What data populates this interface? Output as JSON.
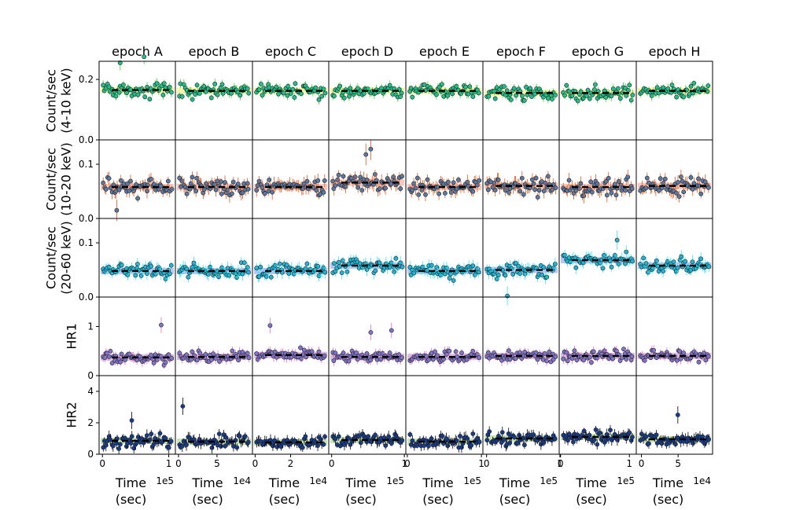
{
  "figure": {
    "columns": [
      {
        "title": "epoch A",
        "xlabel_line1": "Time",
        "xlabel_line2": "(sec)",
        "offset_label": "1e5",
        "x_ticks": [
          {
            "v": 0,
            "l": "0"
          },
          {
            "v": 1,
            "l": "1"
          }
        ],
        "xlim": [
          -0.05,
          1.1
        ]
      },
      {
        "title": "epoch B",
        "xlabel_line1": "Time",
        "xlabel_line2": "(sec)",
        "offset_label": "1e4",
        "x_ticks": [
          {
            "v": 0,
            "l": "0"
          },
          {
            "v": 5,
            "l": "5"
          }
        ],
        "xlim": [
          -0.4,
          9.6
        ]
      },
      {
        "title": "epoch C",
        "xlabel_line1": "Time",
        "xlabel_line2": "(sec)",
        "offset_label": "1e4",
        "x_ticks": [
          {
            "v": 0,
            "l": "0"
          },
          {
            "v": 2,
            "l": "2"
          }
        ],
        "xlim": [
          -0.15,
          4.15
        ]
      },
      {
        "title": "epoch D",
        "xlabel_line1": "Time",
        "xlabel_line2": "(sec)",
        "offset_label": "1e5",
        "x_ticks": [
          {
            "v": 0,
            "l": "0"
          },
          {
            "v": 1,
            "l": "1"
          }
        ],
        "xlim": [
          -0.04,
          1.02
        ]
      },
      {
        "title": "epoch E",
        "xlabel_line1": "Time",
        "xlabel_line2": "(sec)",
        "offset_label": "1e5",
        "x_ticks": [
          {
            "v": 0,
            "l": "0"
          },
          {
            "v": 1,
            "l": "1"
          }
        ],
        "xlim": [
          -0.02,
          1.02
        ]
      },
      {
        "title": "epoch F",
        "xlabel_line1": "Time",
        "xlabel_line2": "(sec)",
        "offset_label": "1e5",
        "x_ticks": [
          {
            "v": 0,
            "l": "0"
          },
          {
            "v": 1,
            "l": "1"
          }
        ],
        "xlim": [
          -0.05,
          0.99
        ]
      },
      {
        "title": "epoch G",
        "xlabel_line1": "Time",
        "xlabel_line2": "(sec)",
        "offset_label": "1e5",
        "x_ticks": [
          {
            "v": 0,
            "l": "0"
          },
          {
            "v": 1,
            "l": "1"
          }
        ],
        "xlim": [
          -0.02,
          1.1
        ]
      },
      {
        "title": "epoch H",
        "xlabel_line1": "Time",
        "xlabel_line2": "(sec)",
        "offset_label": "1e4",
        "x_ticks": [
          {
            "v": 0,
            "l": "0"
          },
          {
            "v": 5,
            "l": "5"
          }
        ],
        "xlim": [
          -0.7,
          9.7
        ]
      }
    ],
    "rows": [
      {
        "ylabel": [
          "Count/sec",
          "(4-10 keV)"
        ],
        "y_ticks": [
          {
            "v": 0,
            "l": "0.0"
          },
          {
            "v": 0.2,
            "l": "0.2"
          }
        ],
        "ylim": [
          0,
          0.26
        ]
      },
      {
        "ylabel": [
          "Count/sec",
          "(10-20 keV)"
        ],
        "y_ticks": [
          {
            "v": 0,
            "l": "0.0"
          },
          {
            "v": 0.1,
            "l": "0.1"
          }
        ],
        "ylim": [
          0,
          0.145
        ]
      },
      {
        "ylabel": [
          "Count/sec",
          "(20-60 keV)"
        ],
        "y_ticks": [
          {
            "v": 0,
            "l": "0.0"
          },
          {
            "v": 0.1,
            "l": "0.1"
          }
        ],
        "ylim": [
          0,
          0.145
        ]
      },
      {
        "ylabel": [
          "HR1"
        ],
        "y_ticks": [
          {
            "v": 0,
            "l": "0"
          },
          {
            "v": 1,
            "l": "1"
          }
        ],
        "ylim": [
          0,
          1.6
        ]
      },
      {
        "ylabel": [
          "HR2"
        ],
        "y_ticks": [
          {
            "v": 0,
            "l": "0"
          },
          {
            "v": 2,
            "l": "2"
          },
          {
            "v": 4,
            "l": "4"
          }
        ],
        "ylim": [
          0,
          5
        ]
      }
    ]
  },
  "chart_data": {
    "type": "scatter",
    "layout": "5 rows x 8 columns grid of light curves with error bars, per-epoch mean (dashed line) and shaded band",
    "grid": false,
    "series": [
      {
        "row": 0,
        "means": [
          0.165,
          0.162,
          0.162,
          0.162,
          0.162,
          0.155,
          0.155,
          0.162
        ],
        "scatter": 0.018,
        "err": 0.025,
        "marker_color": "#1fc08e",
        "errbar_color": "#41d12f",
        "band_color": "#f5f08c",
        "outliers": [
          {
            "col": 0,
            "x": 0.25,
            "y": 0.255
          },
          {
            "col": 0,
            "x": 0.6,
            "y": 0.275
          }
        ]
      },
      {
        "row": 1,
        "means": [
          0.058,
          0.058,
          0.058,
          0.066,
          0.058,
          0.06,
          0.058,
          0.06
        ],
        "scatter": 0.012,
        "err": 0.02,
        "marker_color": "#5a7aa5",
        "errbar_color": "#e8571b",
        "band_color": "#f4b7a8",
        "outliers": [
          {
            "col": 3,
            "x": 0.55,
            "y": 0.128
          },
          {
            "col": 3,
            "x": 0.48,
            "y": 0.118
          },
          {
            "col": 0,
            "x": 0.2,
            "y": 0.015
          }
        ]
      },
      {
        "row": 2,
        "means": [
          0.048,
          0.048,
          0.048,
          0.058,
          0.048,
          0.05,
          0.068,
          0.058
        ],
        "scatter": 0.01,
        "err": 0.018,
        "marker_color": "#1cb8d8",
        "errbar_color": "#3fe0f5",
        "band_color": "#9fb4f0",
        "outliers": [
          {
            "col": 6,
            "x": 0.78,
            "y": 0.105
          },
          {
            "col": 5,
            "x": 0.3,
            "y": 0.002
          }
        ]
      },
      {
        "row": 3,
        "means": [
          0.37,
          0.38,
          0.42,
          0.38,
          0.38,
          0.4,
          0.4,
          0.4
        ],
        "scatter": 0.09,
        "err": 0.16,
        "marker_color": "#8075cc",
        "errbar_color": "#e86fc3",
        "band_color": "#c7a9d6",
        "outliers": [
          {
            "col": 0,
            "x": 0.85,
            "y": 1.03
          },
          {
            "col": 2,
            "x": 0.2,
            "y": 1.02
          },
          {
            "col": 3,
            "x": 0.55,
            "y": 0.88
          },
          {
            "col": 3,
            "x": 0.85,
            "y": 0.92
          }
        ]
      },
      {
        "row": 4,
        "means": [
          0.85,
          0.8,
          0.75,
          0.9,
          0.8,
          1.0,
          1.1,
          0.95
        ],
        "scatter": 0.3,
        "err": 0.55,
        "marker_color": "#173b8c",
        "errbar_color": "#000000",
        "band_color": "#b4dc9e",
        "outliers": [
          {
            "col": 1,
            "x": 0.05,
            "y": 3.05
          },
          {
            "col": 0,
            "x": 0.42,
            "y": 2.15
          },
          {
            "col": 7,
            "x": 0.55,
            "y": 2.5
          }
        ]
      }
    ]
  }
}
